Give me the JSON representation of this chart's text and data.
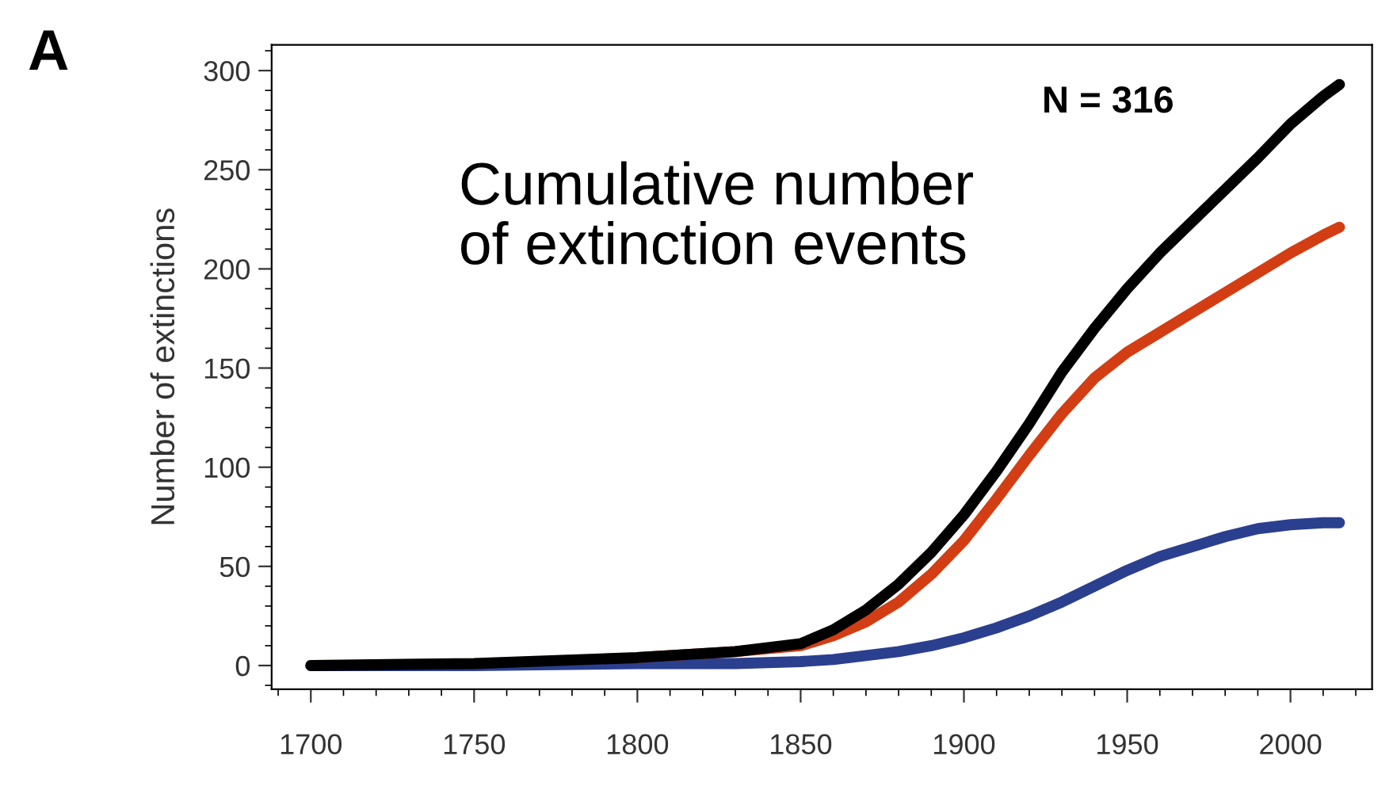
{
  "chart_data": {
    "type": "line",
    "ylabel": "Number of extinctions",
    "annotations": [
      "A",
      "Cumulative number\nof extinction events",
      "N = 316"
    ],
    "x": [
      1700,
      1750,
      1800,
      1830,
      1850,
      1860,
      1870,
      1880,
      1890,
      1900,
      1910,
      1920,
      1930,
      1940,
      1950,
      1960,
      1970,
      1980,
      1990,
      2000,
      2010,
      2015
    ],
    "series": [
      {
        "color": "#2b3f8f",
        "values": [
          0,
          0,
          1,
          1,
          2,
          3,
          5,
          7,
          10,
          14,
          19,
          25,
          32,
          40,
          48,
          55,
          60,
          65,
          69,
          71,
          72,
          72
        ]
      },
      {
        "color": "#d33d14",
        "values": [
          null,
          null,
          4,
          7,
          10,
          15,
          22,
          32,
          46,
          63,
          84,
          106,
          127,
          145,
          158,
          168,
          178,
          188,
          198,
          208,
          217,
          221
        ]
      },
      {
        "color": "#000000",
        "values": [
          0,
          1,
          4,
          7,
          11,
          18,
          28,
          41,
          57,
          76,
          98,
          122,
          148,
          170,
          190,
          208,
          224,
          240,
          256,
          273,
          287,
          293
        ]
      }
    ],
    "xlim": [
      1688,
      2025
    ],
    "ylim": [
      -12,
      313
    ],
    "xticks": [
      1700,
      1750,
      1800,
      1850,
      1900,
      1950,
      2000
    ],
    "yticks": [
      0,
      50,
      100,
      150,
      200,
      250,
      300
    ],
    "grid": false,
    "legend": false,
    "marker": "none",
    "line_style": "solid"
  }
}
